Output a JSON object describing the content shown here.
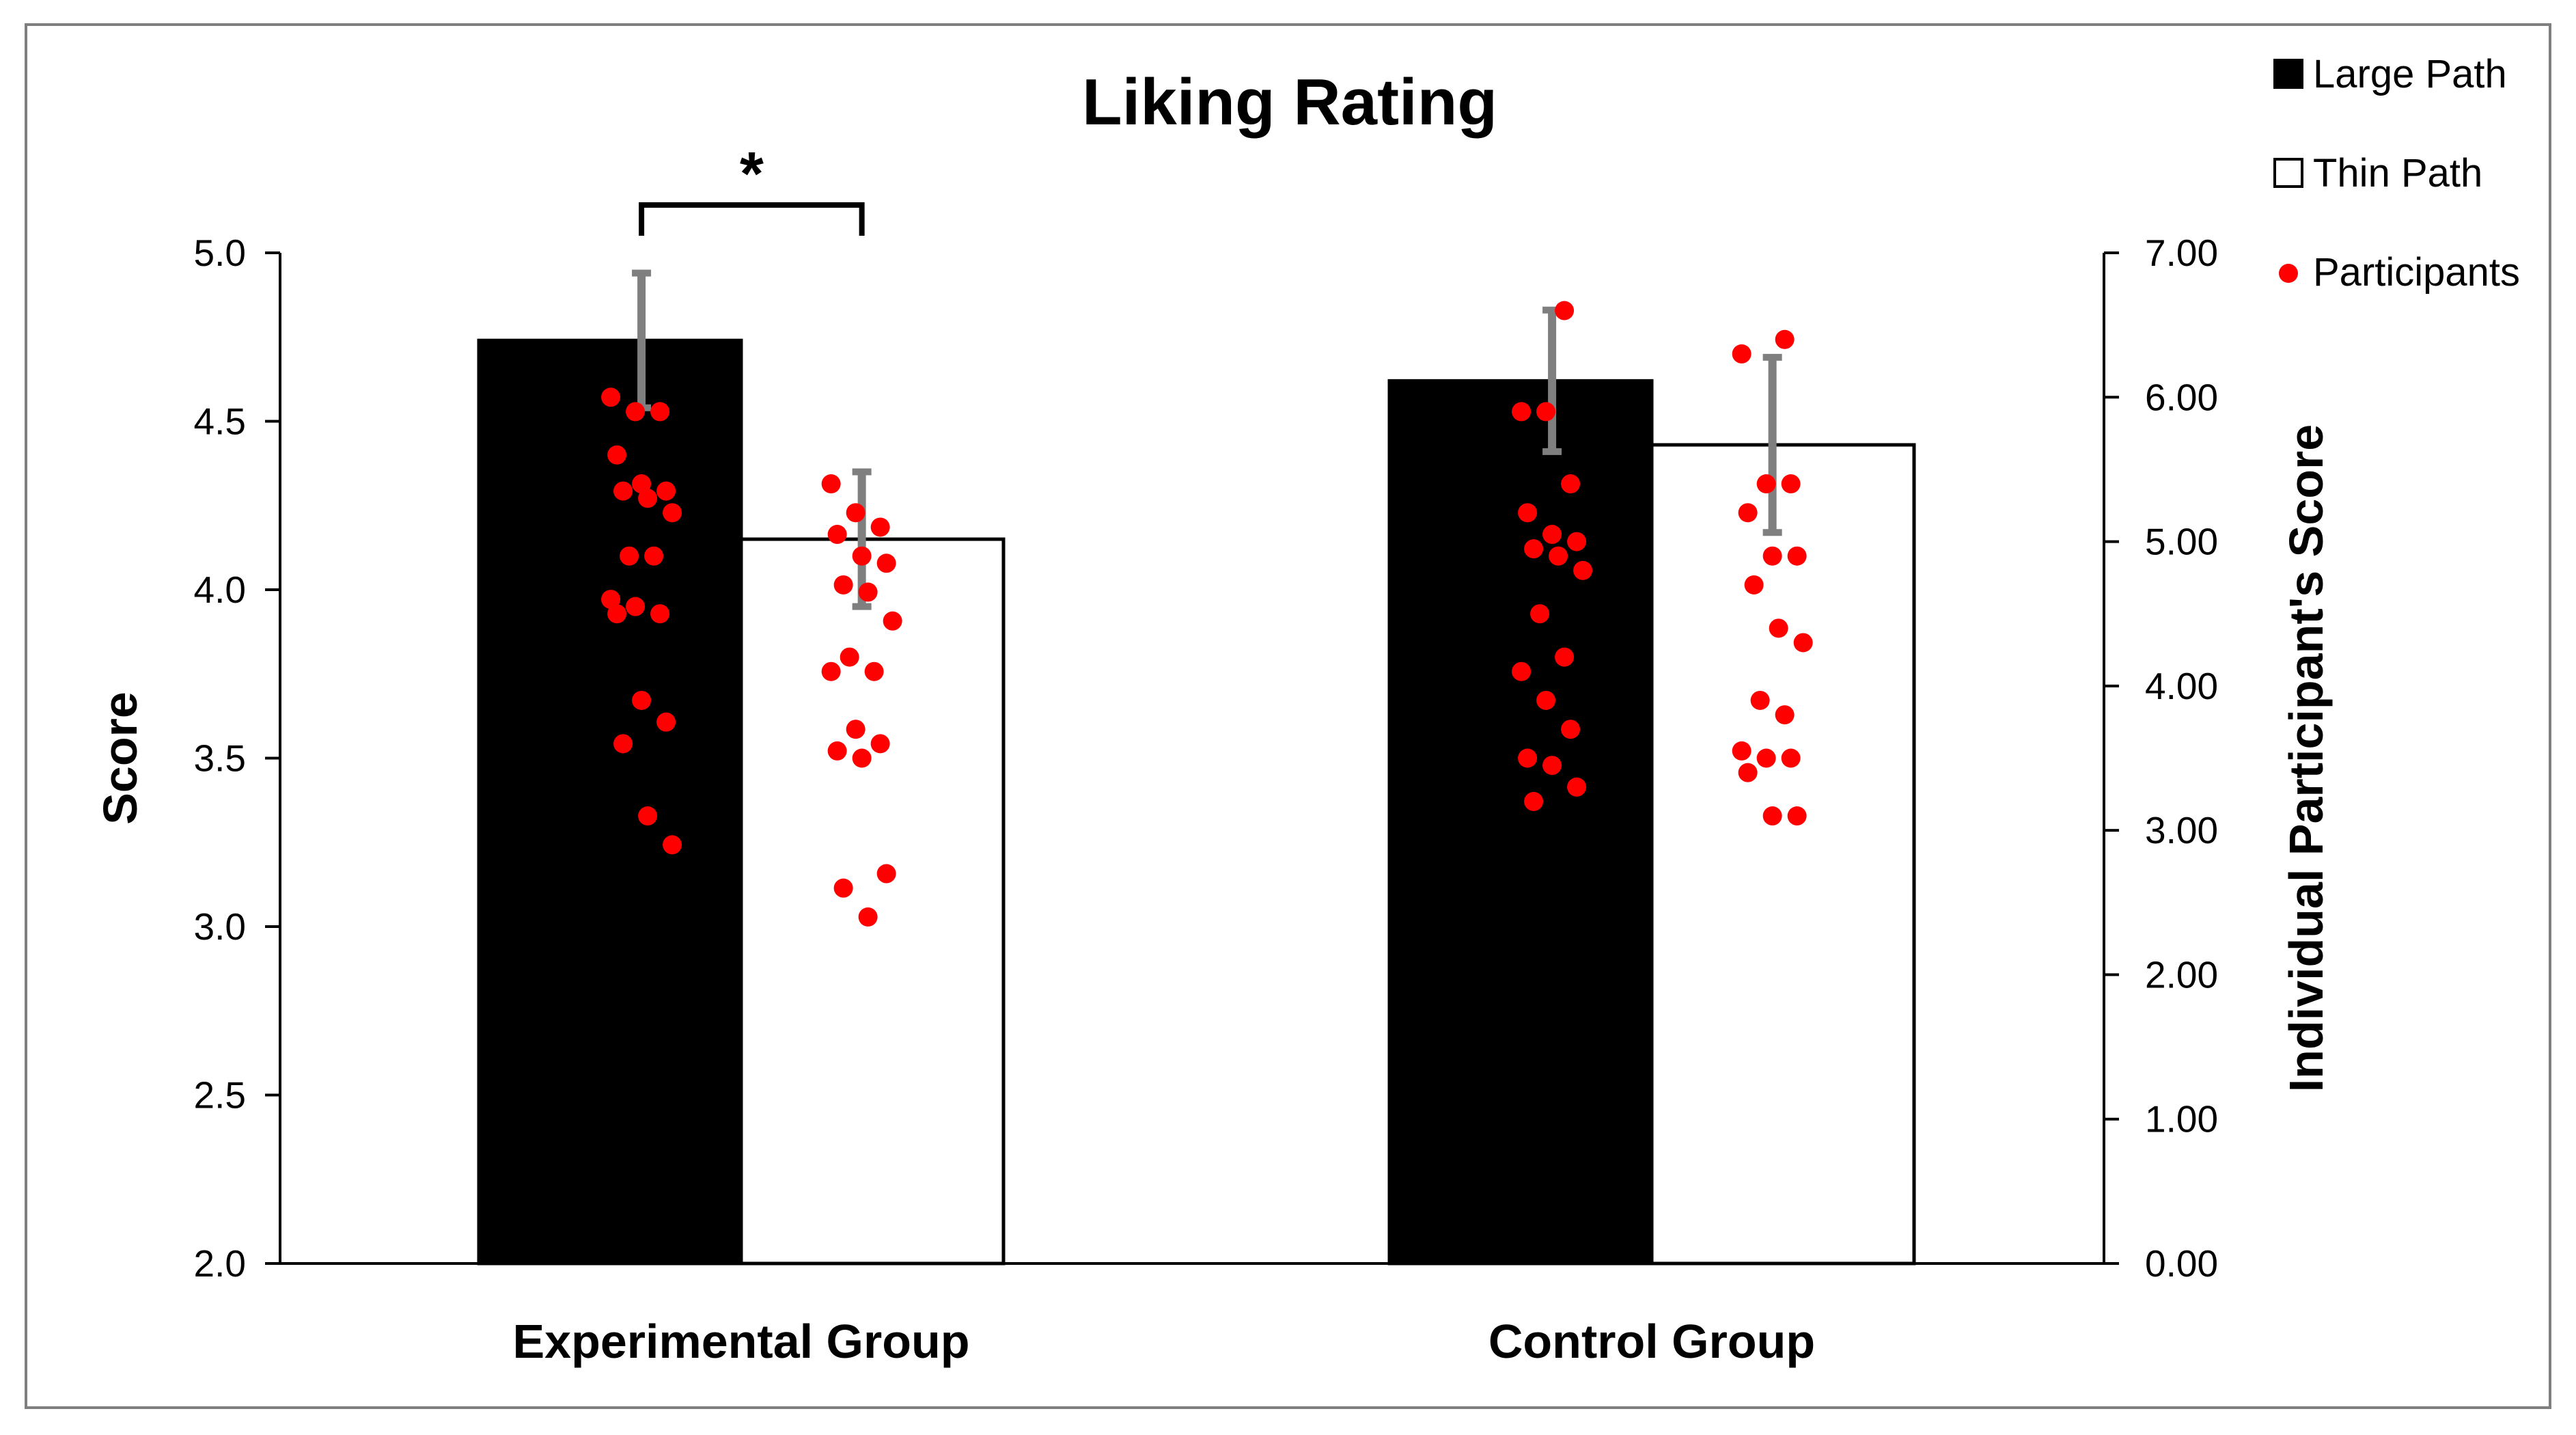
{
  "chart_data": {
    "type": "bar",
    "title": "Liking Rating",
    "categories": [
      "Experimental Group",
      "Control Group"
    ],
    "ylabel": "Score",
    "ylim": [
      2.0,
      5.0
    ],
    "yticks": [
      "2.0",
      "2.5",
      "3.0",
      "3.5",
      "4.0",
      "4.5",
      "5.0"
    ],
    "y2label": "Individual Participant's Score",
    "y2lim": [
      0,
      7
    ],
    "y2ticks": [
      "0.00",
      "1.00",
      "2.00",
      "3.00",
      "4.00",
      "5.00",
      "6.00",
      "7.00"
    ],
    "grid": false,
    "legend_position": "top-right",
    "series": [
      {
        "name": "Large Path",
        "color": "#000000",
        "values": [
          4.74,
          4.62
        ],
        "error": [
          0.2,
          0.21
        ],
        "participants": [
          [
            6.0,
            5.9,
            5.9,
            5.6,
            5.4,
            5.35,
            5.35,
            5.3,
            5.2,
            4.9,
            4.9,
            4.6,
            4.55,
            4.5,
            4.5,
            3.9,
            3.75,
            3.6,
            3.1,
            2.9
          ],
          [
            6.6,
            5.9,
            5.9,
            5.4,
            5.2,
            5.05,
            5.0,
            4.95,
            4.9,
            4.8,
            4.5,
            4.2,
            4.1,
            3.9,
            3.7,
            3.5,
            3.45,
            3.3,
            3.2
          ]
        ]
      },
      {
        "name": "Thin Path",
        "color": "#ffffff",
        "values": [
          4.15,
          4.43
        ],
        "error": [
          0.2,
          0.26
        ],
        "participants": [
          [
            5.4,
            5.2,
            5.1,
            5.05,
            4.9,
            4.85,
            4.7,
            4.65,
            4.45,
            4.2,
            4.1,
            4.1,
            3.7,
            3.6,
            3.55,
            3.5,
            2.7,
            2.6,
            2.4
          ],
          [
            6.4,
            6.3,
            5.4,
            5.4,
            5.2,
            4.9,
            4.9,
            4.7,
            4.4,
            4.3,
            3.9,
            3.8,
            3.55,
            3.5,
            3.5,
            3.4,
            3.1,
            3.1
          ]
        ]
      }
    ],
    "participants_label": "Participants",
    "participants_color": "#ff0000",
    "error_color": "#7f7f7f",
    "significance": {
      "symbol": "*",
      "category": "Experimental Group"
    }
  }
}
